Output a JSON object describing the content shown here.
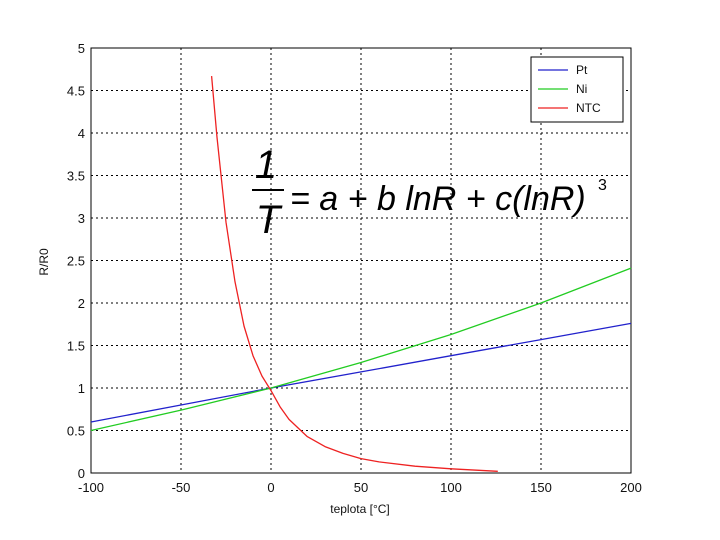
{
  "chart_data": {
    "type": "line",
    "xlabel": "teplota [°C]",
    "ylabel": "R/R0",
    "xlim": [
      -100,
      200
    ],
    "ylim": [
      0,
      5
    ],
    "xticks": [
      "-100",
      "-50",
      "0",
      "50",
      "100",
      "150",
      "200"
    ],
    "yticks": [
      "0",
      "0.5",
      "1",
      "1.5",
      "2",
      "2.5",
      "3",
      "3.5",
      "4",
      "4.5",
      "5"
    ],
    "grid": true,
    "legend_position": "top-right",
    "series": [
      {
        "name": "Pt",
        "color": "#2222cc",
        "x": [
          -100,
          -50,
          0,
          50,
          100,
          150,
          200
        ],
        "y": [
          0.6,
          0.8,
          1.0,
          1.19,
          1.38,
          1.57,
          1.76
        ]
      },
      {
        "name": "Ni",
        "color": "#22cc22",
        "x": [
          -100,
          -50,
          0,
          50,
          100,
          150,
          200
        ],
        "y": [
          0.5,
          0.74,
          1.0,
          1.3,
          1.63,
          2.0,
          2.41
        ]
      },
      {
        "name": "NTC",
        "color": "#ee2222",
        "x": [
          -33,
          -30,
          -25,
          -20,
          -15,
          -10,
          -5,
          0,
          5,
          10,
          20,
          30,
          40,
          50,
          60,
          80,
          100,
          126
        ],
        "y": [
          4.67,
          3.95,
          2.95,
          2.25,
          1.73,
          1.38,
          1.14,
          0.97,
          0.78,
          0.63,
          0.43,
          0.31,
          0.23,
          0.17,
          0.13,
          0.08,
          0.05,
          0.02
        ]
      }
    ],
    "annotation": {
      "numerator": "1",
      "denominator": "T",
      "rhs_a": "= a + b lnR + c(lnR)",
      "exponent": "3"
    }
  }
}
